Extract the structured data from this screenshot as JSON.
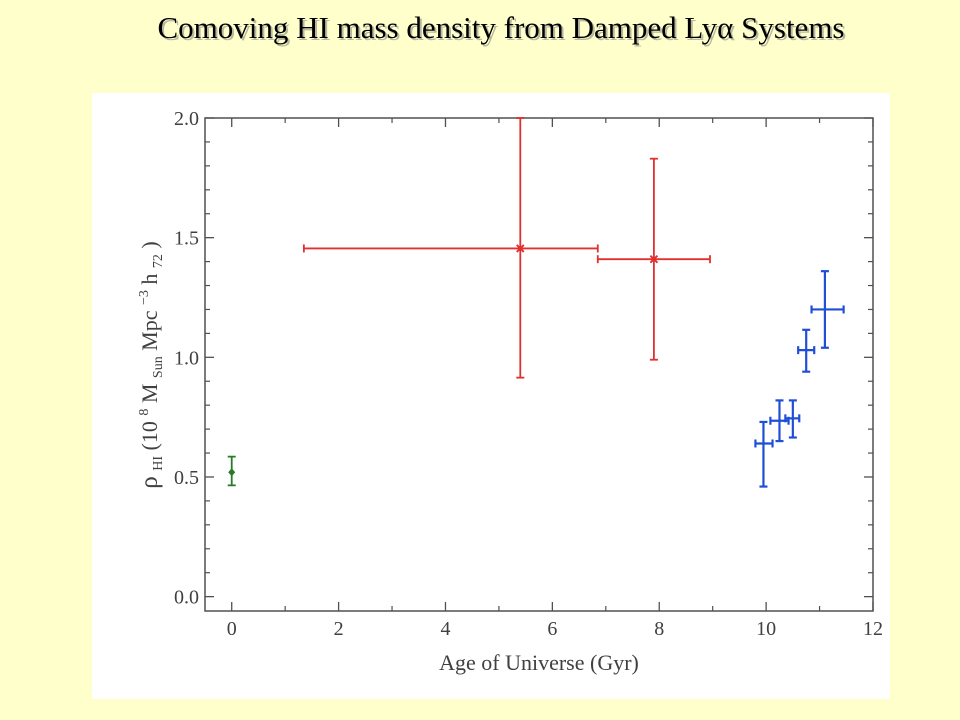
{
  "slide": {
    "title": "Comoving HI mass density from Damped Lyα Systems"
  },
  "chart_data": {
    "type": "scatter",
    "xlabel": "Age of Universe (Gyr)",
    "ylabel": {
      "rho": "ρ",
      "rho_sub": "HI",
      "open": " (10",
      "exp8": "8",
      "m": " M",
      "m_sub": "Sun",
      "mpc": " Mpc",
      "exp_neg3": "−3",
      "h": " h",
      "h_sub": "72",
      "close": ")"
    },
    "xlim": [
      -0.5,
      12
    ],
    "ylim": [
      -0.06,
      2.0
    ],
    "x_ticks": [
      0,
      2,
      4,
      6,
      8,
      10,
      12
    ],
    "y_ticks": [
      0.0,
      0.5,
      1.0,
      1.5,
      2.0
    ],
    "x_tick_labels": [
      "0",
      "2",
      "4",
      "6",
      "8",
      "10",
      "12"
    ],
    "y_tick_labels": [
      "0.0",
      "0.5",
      "1.0",
      "1.5",
      "2.0"
    ],
    "grid": false,
    "series": [
      {
        "color": "#2a7a2a",
        "marker": "diamond",
        "points": [
          {
            "x": 0.0,
            "y": 0.52,
            "xerr": [
              0.0,
              0.0
            ],
            "yerr": [
              0.465,
              0.585
            ]
          }
        ]
      },
      {
        "color": "#e03030",
        "marker": "x",
        "points": [
          {
            "x": 5.4,
            "y": 1.455,
            "xerr": [
              1.35,
              6.85
            ],
            "yerr": [
              0.915,
              2.0
            ]
          },
          {
            "x": 7.9,
            "y": 1.41,
            "xerr": [
              6.85,
              8.95
            ],
            "yerr": [
              0.99,
              1.83
            ]
          }
        ]
      },
      {
        "color": "#1f4fd6",
        "marker": "none",
        "points": [
          {
            "x": 9.95,
            "y": 0.64,
            "xerr": [
              9.8,
              10.12
            ],
            "yerr": [
              0.46,
              0.73
            ]
          },
          {
            "x": 10.25,
            "y": 0.735,
            "xerr": [
              10.08,
              10.42
            ],
            "yerr": [
              0.65,
              0.82
            ]
          },
          {
            "x": 10.5,
            "y": 0.745,
            "xerr": [
              10.36,
              10.62
            ],
            "yerr": [
              0.665,
              0.82
            ]
          },
          {
            "x": 10.75,
            "y": 1.03,
            "xerr": [
              10.6,
              10.9
            ],
            "yerr": [
              0.94,
              1.115
            ]
          },
          {
            "x": 11.1,
            "y": 1.2,
            "xerr": [
              10.85,
              11.45
            ],
            "yerr": [
              1.04,
              1.36
            ]
          }
        ]
      }
    ]
  }
}
